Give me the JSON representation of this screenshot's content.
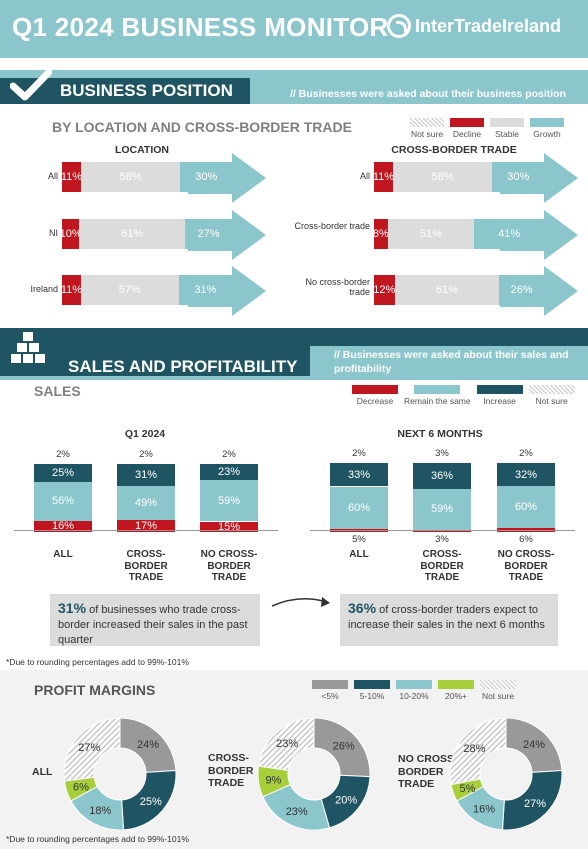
{
  "header": {
    "title": "Q1 2024 BUSINESS MONITOR",
    "logo_text": "InterTradeIreland"
  },
  "business_position": {
    "title": "BUSINESS POSITION",
    "note": "// Businesses were asked about their business position",
    "subtitle": "BY LOCATION AND CROSS-BORDER TRADE",
    "legend": [
      {
        "label": "Not sure",
        "color": "hatch"
      },
      {
        "label": "Decline",
        "color": "#c0161f"
      },
      {
        "label": "Stable",
        "color": "#dcdcdc"
      },
      {
        "label": "Growth",
        "color": "#8ac6cc"
      }
    ],
    "location": {
      "title": "LOCATION",
      "rows": [
        {
          "label": "All",
          "decline": "11%",
          "stable": "58%",
          "growth": "30%",
          "d": 11,
          "s": 58,
          "g": 30
        },
        {
          "label": "NI",
          "decline": "10%",
          "stable": "61%",
          "growth": "27%",
          "d": 10,
          "s": 61,
          "g": 27
        },
        {
          "label": "Ireland",
          "decline": "11%",
          "stable": "57%",
          "growth": "31%",
          "d": 11,
          "s": 57,
          "g": 31
        }
      ]
    },
    "cross_border": {
      "title": "CROSS-BORDER TRADE",
      "rows": [
        {
          "label": "All",
          "decline": "11%",
          "stable": "58%",
          "growth": "30%",
          "d": 11,
          "s": 58,
          "g": 30
        },
        {
          "label": "Cross-border trade",
          "decline": "8%",
          "stable": "51%",
          "growth": "41%",
          "d": 8,
          "s": 51,
          "g": 41
        },
        {
          "label": "No cross-border trade",
          "decline": "12%",
          "stable": "61%",
          "growth": "26%",
          "d": 12,
          "s": 61,
          "g": 26
        }
      ]
    }
  },
  "sales_profitability": {
    "title": "SALES AND PROFITABILITY",
    "note": "// Businesses were asked about their sales and profitability"
  },
  "sales": {
    "title": "SALES",
    "legend": [
      {
        "label": "Decrease",
        "color": "#c0161f"
      },
      {
        "label": "Remain the same",
        "color": "#8ac6cc"
      },
      {
        "label": "Increase",
        "color": "#1f5563"
      },
      {
        "label": "Not sure",
        "color": "hatch"
      }
    ],
    "q1": {
      "title": "Q1 2024",
      "groups": [
        {
          "label": "ALL",
          "notsure": "2%",
          "increase": "25%",
          "same": "56%",
          "decrease": "16%",
          "i": 25,
          "m": 56,
          "d": 16
        },
        {
          "label": "CROSS-BORDER TRADE",
          "notsure": "2%",
          "increase": "31%",
          "same": "49%",
          "decrease": "17%",
          "i": 31,
          "m": 49,
          "d": 17
        },
        {
          "label": "NO CROSS-BORDER TRADE",
          "notsure": "2%",
          "increase": "23%",
          "same": "59%",
          "decrease": "15%",
          "i": 23,
          "m": 59,
          "d": 15
        }
      ]
    },
    "next6": {
      "title": "NEXT 6 MONTHS",
      "groups": [
        {
          "label": "ALL",
          "notsure": "2%",
          "increase": "33%",
          "same": "60%",
          "decrease": "5%",
          "i": 33,
          "m": 60,
          "d": 5
        },
        {
          "label": "CROSS-BORDER TRADE",
          "notsure": "3%",
          "increase": "36%",
          "same": "59%",
          "decrease": "3%",
          "i": 36,
          "m": 59,
          "d": 3
        },
        {
          "label": "NO CROSS-BORDER TRADE",
          "notsure": "2%",
          "increase": "32%",
          "same": "60%",
          "decrease": "6%",
          "i": 32,
          "m": 60,
          "d": 6
        }
      ]
    },
    "callout_left": {
      "pct": "31%",
      "text": " of businesses who trade cross-border increased their sales in the past quarter"
    },
    "callout_right": {
      "pct": "36%",
      "text": " of cross-border traders expect to increase their sales in the next 6 months"
    },
    "footnote": "*Due to rounding percentages add to 99%-101%"
  },
  "profit_margins": {
    "title": "PROFIT MARGINS",
    "legend": [
      {
        "label": "<5%",
        "color": "#999999"
      },
      {
        "label": "5-10%",
        "color": "#1f5563"
      },
      {
        "label": "10-20%",
        "color": "#8ac6cc"
      },
      {
        "label": "20%+",
        "color": "#a6cf3a"
      },
      {
        "label": "Not sure",
        "color": "hatch"
      }
    ],
    "donuts": [
      {
        "label": "ALL",
        "values": [
          24,
          25,
          18,
          6,
          27
        ],
        "labels": [
          "24%",
          "25%",
          "18%",
          "6%",
          "27%"
        ]
      },
      {
        "label": "CROSS-BORDER TRADE",
        "values": [
          26,
          20,
          23,
          9,
          23
        ],
        "labels": [
          "26%",
          "20%",
          "23%",
          "9%",
          "23%"
        ]
      },
      {
        "label": "NO CROSS-BORDER TRADE",
        "values": [
          24,
          27,
          16,
          5,
          28
        ],
        "labels": [
          "24%",
          "27%",
          "16%",
          "5%",
          "28%"
        ]
      }
    ],
    "footnote": "*Due to rounding percentages add to 99%-101%"
  }
}
